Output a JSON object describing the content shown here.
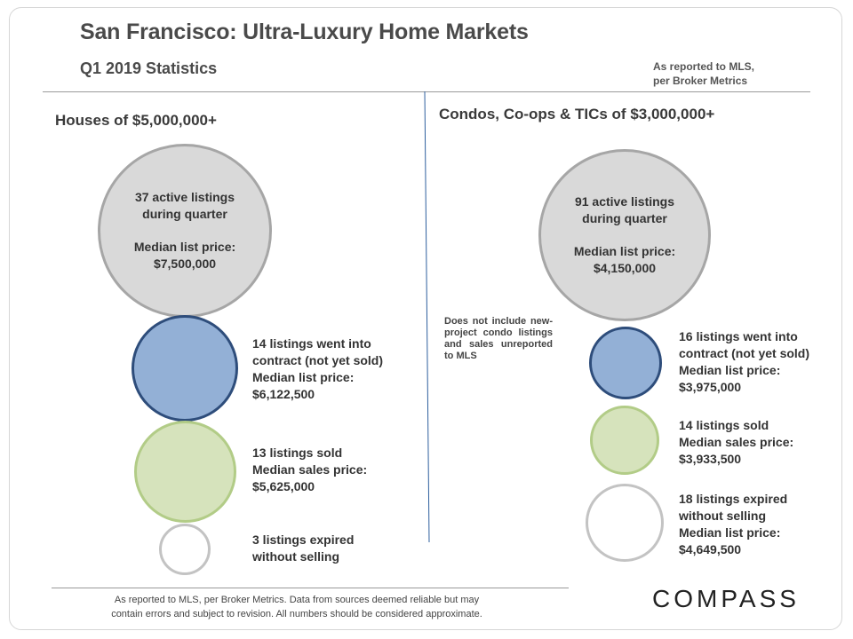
{
  "header": {
    "title": "San Francisco: Ultra-Luxury Home Markets",
    "subtitle": "Q1 2019 Statistics",
    "source_note_line1": "As reported to MLS,",
    "source_note_line2": "per Broker Metrics"
  },
  "houses": {
    "heading": "Houses of $5,000,000+",
    "active": {
      "line1": "37 active listings",
      "line2": "during quarter",
      "line3": "Median list price:",
      "line4": "$7,500,000",
      "count": 37
    },
    "contract": {
      "line1": "14 listings went into",
      "line2": "contract (not yet sold)",
      "line3": "Median list price:",
      "line4": "$6,122,500",
      "count": 14
    },
    "sold": {
      "line1": "13 listings sold",
      "line2": "Median sales price:",
      "line3": "$5,625,000",
      "count": 13
    },
    "expired": {
      "line1": "3 listings expired",
      "line2": "without selling",
      "count": 3
    }
  },
  "condos": {
    "heading": "Condos, Co-ops & TICs of $3,000,000+",
    "disclaimer": "Does not include new-project condo listings and sales unreported to MLS",
    "active": {
      "line1": "91 active listings",
      "line2": "during quarter",
      "line3": "Median list price:",
      "line4": "$4,150,000",
      "count": 91
    },
    "contract": {
      "line1": "16 listings went into",
      "line2": "contract (not yet sold)",
      "line3": "Median list price:",
      "line4": "$3,975,000",
      "count": 16
    },
    "sold": {
      "line1": "14 listings sold",
      "line2": "Median sales price:",
      "line3": "$3,933,500",
      "count": 14
    },
    "expired": {
      "line1": "18 listings expired",
      "line2": "without selling",
      "line3": "Median list price:",
      "line4": "$4,649,500",
      "count": 18
    }
  },
  "footer": {
    "line1": "As reported to MLS, per Broker Metrics. Data from sources deemed reliable but may",
    "line2": "contain errors and subject to revision. All numbers should be considered approximate.",
    "logo": "COMPASS"
  },
  "colors": {
    "active": "#d9d9d9",
    "contract": "#93b0d6",
    "sold": "#d6e3bc",
    "expired": "#ffffff",
    "divider": "#2e5f9e"
  }
}
